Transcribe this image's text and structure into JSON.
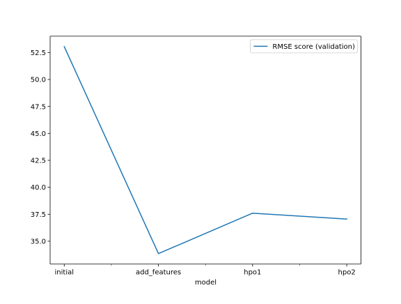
{
  "chart_data": {
    "type": "line",
    "categories": [
      "initial",
      "add_features",
      "hpo1",
      "hpo2"
    ],
    "series": [
      {
        "name": "RMSE score (validation)",
        "values": [
          53.05,
          33.85,
          37.6,
          37.05
        ],
        "color": "#1f77b4"
      }
    ],
    "xlabel": "model",
    "ylabel": "",
    "title": "",
    "xlim": [
      -0.15,
      3.15
    ],
    "ylim": [
      32.88,
      54.02
    ],
    "yticks": [
      35.0,
      37.5,
      40.0,
      42.5,
      45.0,
      47.5,
      50.0,
      52.5
    ],
    "ytick_labels": [
      "35.0",
      "37.5",
      "40.0",
      "42.5",
      "45.0",
      "47.5",
      "50.0",
      "52.5"
    ],
    "xticks_major": [
      0,
      1,
      2,
      3
    ],
    "xticks_minor": [
      0.5,
      1.5,
      2.5
    ],
    "grid": false,
    "legend": "top-right"
  }
}
